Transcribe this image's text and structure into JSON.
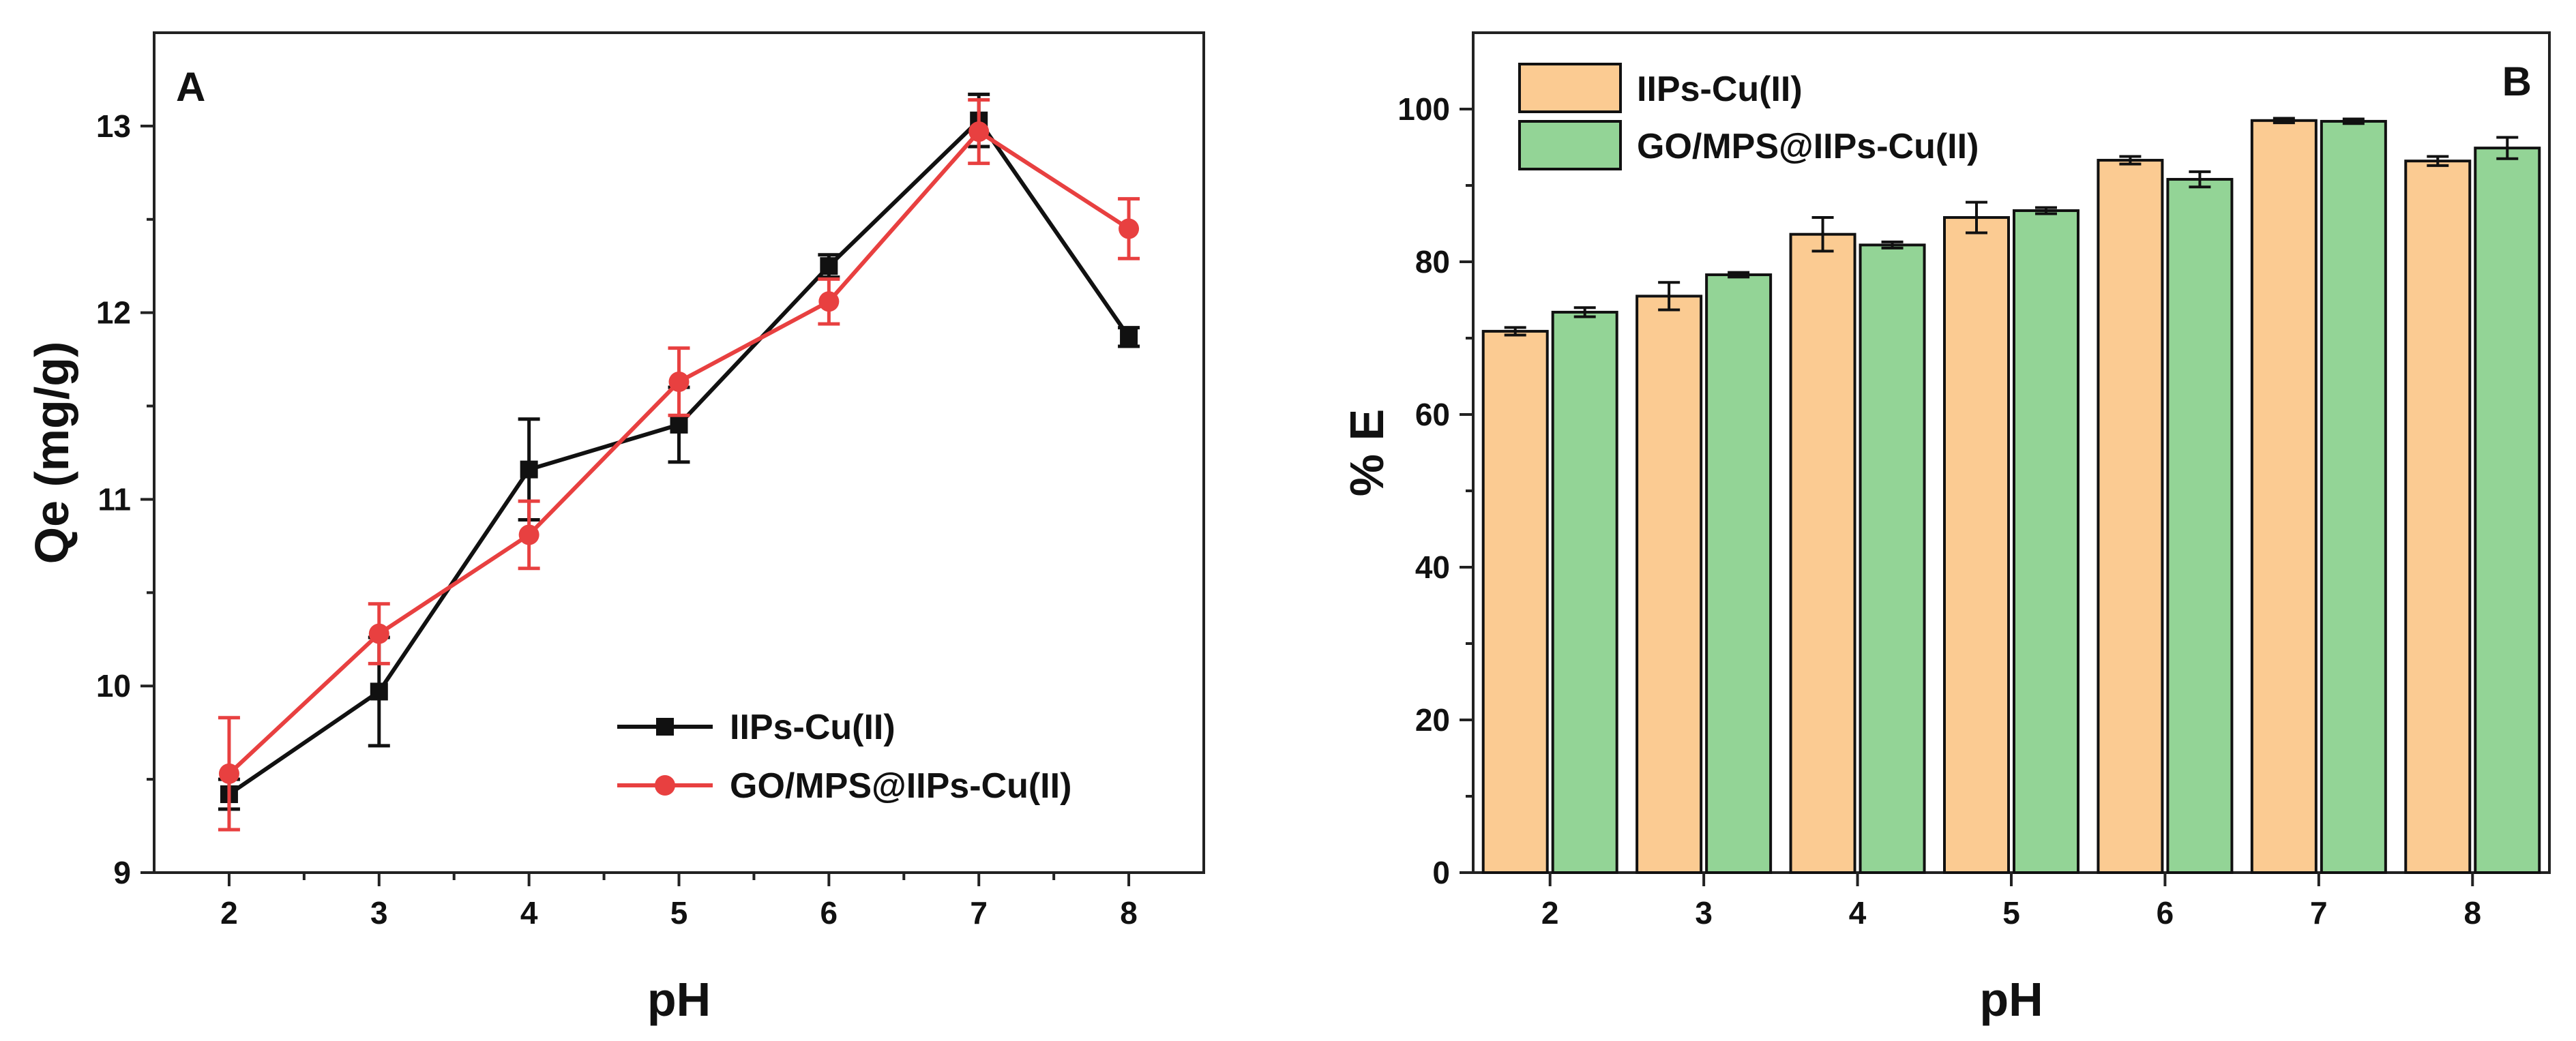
{
  "chart_data": [
    {
      "type": "line",
      "panel_label": "A",
      "xlabel": "pH",
      "ylabel": "Qe (mg/g)",
      "xlim": [
        1.5,
        8.5
      ],
      "ylim": [
        9,
        13.5
      ],
      "xticks": [
        2,
        3,
        4,
        5,
        6,
        7,
        8
      ],
      "yticks": [
        9,
        10,
        11,
        12,
        13
      ],
      "legend_position": "bottom-right",
      "grid": false,
      "series": [
        {
          "name": "IIPs-Cu(II)",
          "color": "#111111",
          "marker": "square",
          "x": [
            2,
            3,
            4,
            5,
            6,
            7,
            8
          ],
          "y": [
            9.42,
            9.97,
            11.16,
            11.4,
            12.25,
            13.03,
            11.87
          ],
          "err": [
            0.08,
            0.29,
            0.27,
            0.2,
            0.06,
            0.14,
            0.05
          ]
        },
        {
          "name": "GO/MPS@IIPs-Cu(II)",
          "color": "#e84040",
          "marker": "circle",
          "x": [
            2,
            3,
            4,
            5,
            6,
            7,
            8
          ],
          "y": [
            9.53,
            10.28,
            10.81,
            11.63,
            12.06,
            12.97,
            12.45
          ],
          "err": [
            0.3,
            0.16,
            0.18,
            0.18,
            0.12,
            0.17,
            0.16
          ]
        }
      ]
    },
    {
      "type": "bar",
      "panel_label": "B",
      "xlabel": "pH",
      "ylabel": "% E",
      "ylim": [
        0,
        110
      ],
      "yticks": [
        0,
        20,
        40,
        60,
        80,
        100
      ],
      "categories": [
        "2",
        "3",
        "4",
        "5",
        "6",
        "7",
        "8"
      ],
      "legend_position": "top-left",
      "grid": false,
      "series": [
        {
          "name": "IIPs-Cu(II)",
          "color": "#fbcb92",
          "values": [
            70.9,
            75.5,
            83.6,
            85.8,
            93.3,
            98.5,
            93.2
          ],
          "err": [
            0.5,
            1.8,
            2.2,
            2.0,
            0.5,
            0.3,
            0.6
          ]
        },
        {
          "name": "GO/MPS@IIPs-Cu(II)",
          "color": "#93d496",
          "values": [
            73.4,
            78.3,
            82.2,
            86.7,
            90.8,
            98.4,
            94.9
          ],
          "err": [
            0.6,
            0.3,
            0.4,
            0.4,
            1.0,
            0.3,
            1.4
          ]
        }
      ]
    }
  ]
}
